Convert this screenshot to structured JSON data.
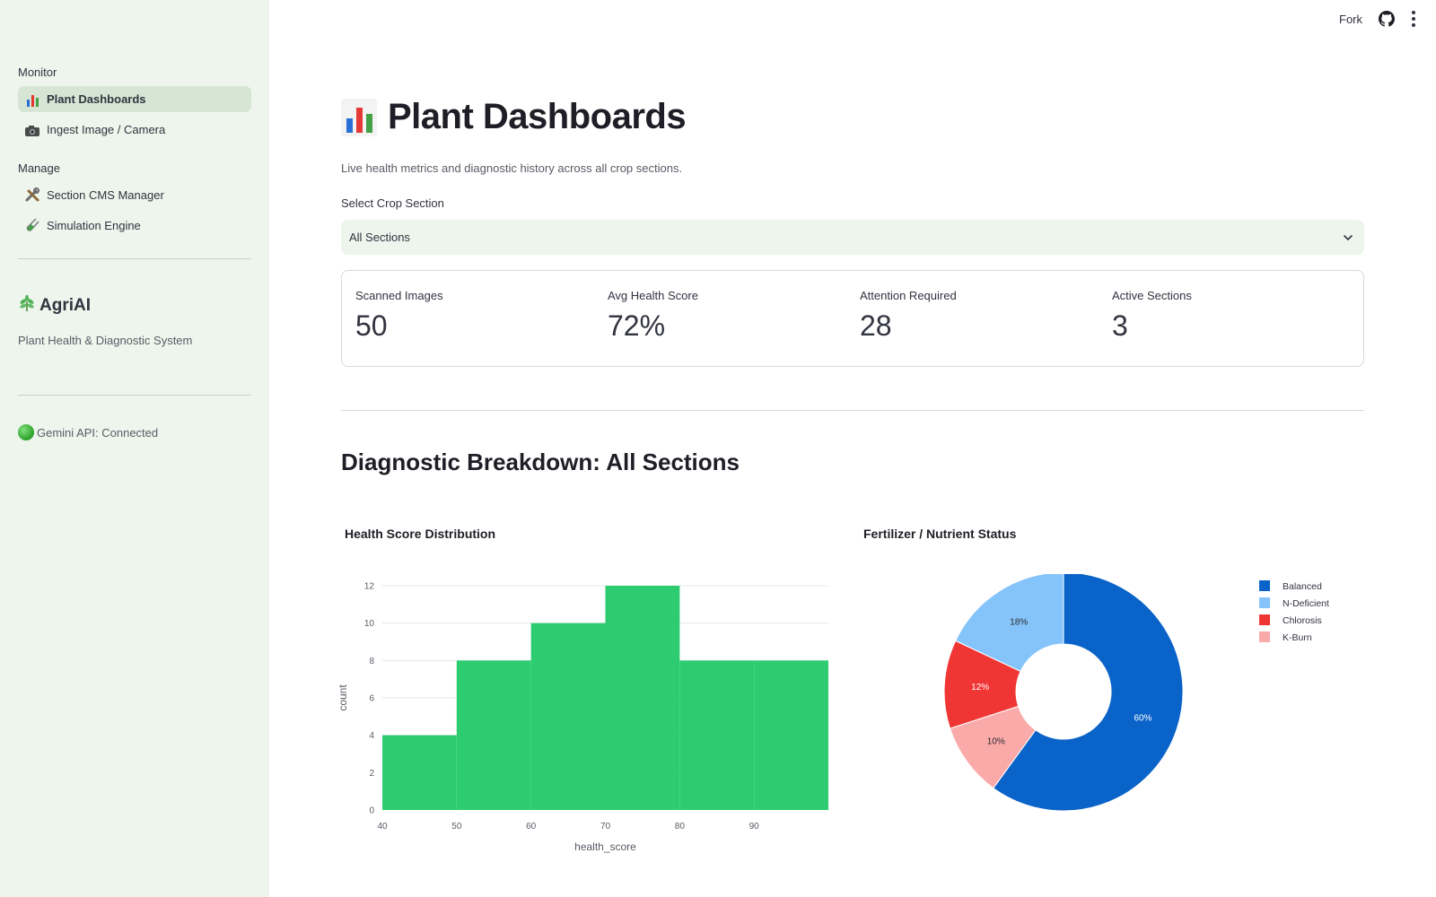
{
  "topbar": {
    "fork_label": "Fork"
  },
  "sidebar": {
    "group_monitor": "Monitor",
    "group_manage": "Manage",
    "items": [
      {
        "label": "Plant Dashboards",
        "icon": "bar-chart-icon",
        "active": true
      },
      {
        "label": "Ingest Image / Camera",
        "icon": "camera-icon",
        "active": false
      },
      {
        "label": "Section CMS Manager",
        "icon": "tools-icon",
        "active": false
      },
      {
        "label": "Simulation Engine",
        "icon": "test-tube-icon",
        "active": false
      }
    ],
    "brand_name": "AgriAI",
    "brand_icon": "herb-icon",
    "brand_subtitle": "Plant Health & Diagnostic System",
    "api_status": "Gemini API: Connected"
  },
  "main": {
    "title": "Plant Dashboards",
    "subtitle": "Live health metrics and diagnostic history across all crop sections.",
    "select_label": "Select Crop Section",
    "select_value": "All Sections",
    "metrics": [
      {
        "label": "Scanned Images",
        "value": "50"
      },
      {
        "label": "Avg Health Score",
        "value": "72%"
      },
      {
        "label": "Attention Required",
        "value": "28"
      },
      {
        "label": "Active Sections",
        "value": "3"
      }
    ],
    "section_title": "Diagnostic Breakdown: All Sections",
    "hist_title": "Health Score Distribution",
    "pie_title": "Fertilizer / Nutrient Status"
  },
  "colors": {
    "hist_bar": "#2ecc71",
    "balanced": "#0a63c8",
    "n_deficient": "#85c4fb",
    "chlorosis": "#f03535",
    "k_burn": "#fbaaaa"
  },
  "chart_data": [
    {
      "type": "bar",
      "title": "Health Score Distribution",
      "xlabel": "health_score",
      "ylabel": "count",
      "bins": [
        [
          40,
          50
        ],
        [
          50,
          60
        ],
        [
          60,
          70
        ],
        [
          70,
          80
        ],
        [
          80,
          90
        ],
        [
          90,
          100
        ]
      ],
      "values": [
        4,
        8,
        10,
        12,
        8,
        8
      ],
      "x_ticks": [
        "40",
        "50",
        "60",
        "70",
        "80",
        "90"
      ],
      "y_ticks": [
        "0",
        "2",
        "4",
        "6",
        "8",
        "10",
        "12"
      ],
      "xlim": [
        40,
        100
      ],
      "ylim": [
        0,
        12
      ],
      "grid": true
    },
    {
      "type": "pie",
      "title": "Fertilizer / Nutrient Status",
      "hole": true,
      "legend_position": "top-right",
      "slices": [
        {
          "name": "Balanced",
          "value": 60,
          "label": "60%"
        },
        {
          "name": "K-Burn",
          "value": 10,
          "label": "10%"
        },
        {
          "name": "Chlorosis",
          "value": 12,
          "label": "12%"
        },
        {
          "name": "N-Deficient",
          "value": 18,
          "label": "18%"
        }
      ],
      "legend": [
        "Balanced",
        "N-Deficient",
        "Chlorosis",
        "K-Burn"
      ]
    }
  ]
}
